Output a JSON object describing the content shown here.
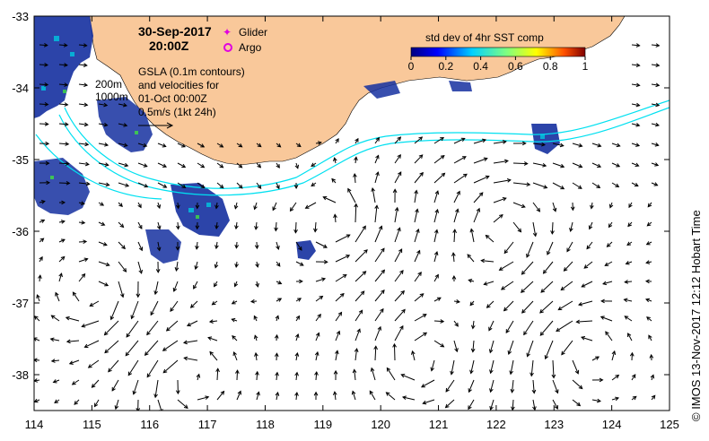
{
  "map": {
    "datetime": "30-Sep-2017",
    "time": "20:00Z",
    "legend": {
      "glider": "Glider",
      "argo": "Argo",
      "glider_color": "#e000e0",
      "argo_color": "#e000e0"
    },
    "depth_labels": [
      "200m",
      "1000m"
    ],
    "notes": {
      "gsla": "GSLA (0.1m contours)",
      "velocities": "and velocities for",
      "date": "01-Oct 00:00Z",
      "scale": "0.5m/s (1kt 24h)"
    },
    "colorbar": {
      "title": "std dev of 4hr SST comp",
      "ticks": [
        "0",
        "0.2",
        "0.4",
        "0.6",
        "0.8",
        "1"
      ]
    },
    "x_ticks": [
      "114",
      "115",
      "116",
      "117",
      "118",
      "119",
      "120",
      "121",
      "122",
      "123",
      "124",
      "125"
    ],
    "y_ticks": [
      "-33",
      "-34",
      "-35",
      "-36",
      "-37",
      "-38"
    ],
    "credit": "© IMOS 13-Nov-2017 12:12 Hobart Time",
    "colors": {
      "land": "#f9c89a",
      "contour": "#00e0f0",
      "arrow": "#000000",
      "sst_low": "#1530a0"
    }
  }
}
